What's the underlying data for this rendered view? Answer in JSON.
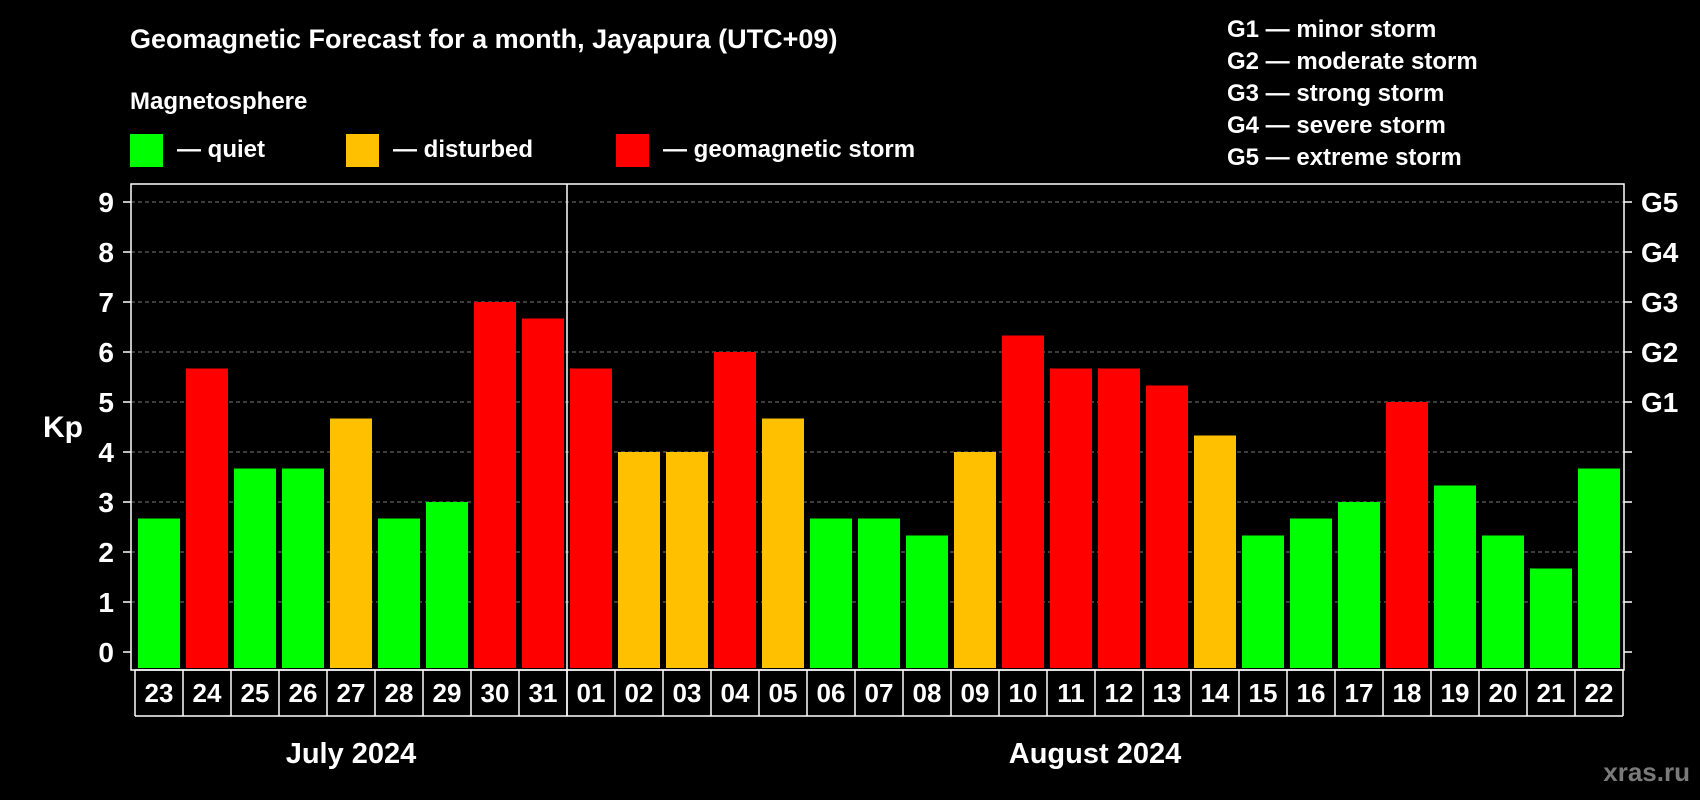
{
  "title": "Geomagnetic Forecast for a month, Jayapura (UTC+09)",
  "magnetosphere_label": "Magnetosphere",
  "legend": [
    {
      "label": "— quiet",
      "color": "#00ff00"
    },
    {
      "label": "— disturbed",
      "color": "#ffc000"
    },
    {
      "label": "— geomagnetic storm",
      "color": "#ff0000"
    }
  ],
  "storm_scale": [
    "G1 — minor storm",
    "G2 — moderate storm",
    "G3 — strong storm",
    "G4 — severe storm",
    "G5 — extreme storm"
  ],
  "watermark": "xras.ru",
  "chart_data": {
    "type": "bar",
    "title": "Geomagnetic Forecast for a month, Jayapura (UTC+09)",
    "ylabel": "Kp",
    "ylim": [
      0,
      9
    ],
    "yticks": [
      0,
      1,
      2,
      3,
      4,
      5,
      6,
      7,
      8,
      9
    ],
    "right_axis": [
      {
        "kp": 5,
        "label": "G1"
      },
      {
        "kp": 6,
        "label": "G2"
      },
      {
        "kp": 7,
        "label": "G3"
      },
      {
        "kp": 8,
        "label": "G4"
      },
      {
        "kp": 9,
        "label": "G5"
      }
    ],
    "grid": true,
    "months": [
      {
        "label": "July 2024",
        "count": 9
      },
      {
        "label": "August 2024",
        "count": 22
      }
    ],
    "categories": [
      "23",
      "24",
      "25",
      "26",
      "27",
      "28",
      "29",
      "30",
      "31",
      "01",
      "02",
      "03",
      "04",
      "05",
      "06",
      "07",
      "08",
      "09",
      "10",
      "11",
      "12",
      "13",
      "14",
      "15",
      "16",
      "17",
      "18",
      "19",
      "20",
      "21",
      "22"
    ],
    "values": [
      2.67,
      5.67,
      3.67,
      3.67,
      4.67,
      2.67,
      3,
      7,
      6.67,
      5.67,
      4,
      4,
      6,
      4.67,
      2.67,
      2.67,
      2.33,
      4,
      6.33,
      5.67,
      5.67,
      5.33,
      4.33,
      2.33,
      2.67,
      3,
      5,
      3.33,
      2.33,
      1.67,
      3.67
    ],
    "status": [
      "quiet",
      "storm",
      "quiet",
      "quiet",
      "disturbed",
      "quiet",
      "quiet",
      "storm",
      "storm",
      "storm",
      "disturbed",
      "disturbed",
      "storm",
      "disturbed",
      "quiet",
      "quiet",
      "quiet",
      "disturbed",
      "storm",
      "storm",
      "storm",
      "storm",
      "disturbed",
      "quiet",
      "quiet",
      "quiet",
      "storm",
      "quiet",
      "quiet",
      "quiet",
      "quiet"
    ],
    "status_colors": {
      "quiet": "#00ff00",
      "disturbed": "#ffc000",
      "storm": "#ff0000"
    }
  }
}
